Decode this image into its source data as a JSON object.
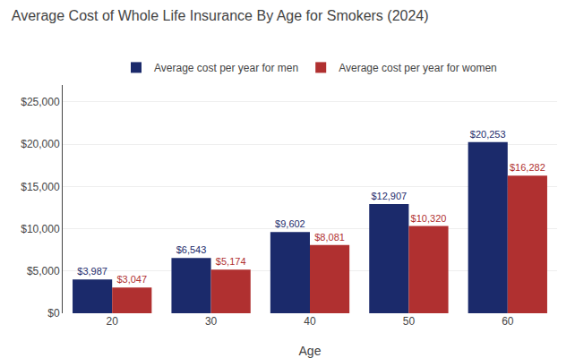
{
  "chart_data": {
    "type": "bar",
    "title": "Average Cost of Whole Life Insurance By Age for Smokers (2024)",
    "xlabel": "Age",
    "categories": [
      "20",
      "30",
      "40",
      "50",
      "60"
    ],
    "series": [
      {
        "name": "Average cost per year for men",
        "color": "#1b2a6b",
        "values": [
          3987,
          6543,
          9602,
          12907,
          20253
        ],
        "value_labels": [
          "$3,987",
          "$6,543",
          "$9,602",
          "$12,907",
          "$20,253"
        ]
      },
      {
        "name": "Average cost per year for women",
        "color": "#b03030",
        "values": [
          3047,
          5174,
          8081,
          10320,
          16282
        ],
        "value_labels": [
          "$3,047",
          "$5,174",
          "$8,081",
          "$10,320",
          "$16,282"
        ]
      }
    ],
    "ylim": [
      0,
      27000
    ],
    "yticks": [
      {
        "value": 0,
        "label": "$0"
      },
      {
        "value": 5000,
        "label": "$5,000"
      },
      {
        "value": 10000,
        "label": "$10,000"
      },
      {
        "value": 15000,
        "label": "$15,000"
      },
      {
        "value": 20000,
        "label": "$20,000"
      },
      {
        "value": 25000,
        "label": "$25,000"
      }
    ],
    "grid": true,
    "legend": "top",
    "data_labels": true
  }
}
